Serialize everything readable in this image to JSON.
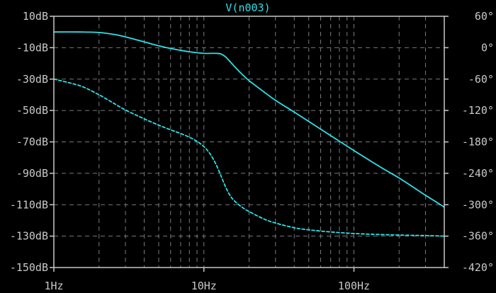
{
  "chart_data": {
    "type": "line",
    "title": "V(n003)",
    "x_scale": "log",
    "xlim": [
      1,
      400
    ],
    "x_tick_labels": [
      {
        "value": 1,
        "label": "1Hz"
      },
      {
        "value": 10,
        "label": "10Hz"
      },
      {
        "value": 100,
        "label": "100Hz"
      }
    ],
    "y_left": {
      "unit": "dB",
      "ylim": [
        -150,
        10
      ],
      "ticks": [
        {
          "value": 10,
          "label": "10dB"
        },
        {
          "value": -10,
          "label": "-10dB"
        },
        {
          "value": -30,
          "label": "-30dB"
        },
        {
          "value": -50,
          "label": "-50dB"
        },
        {
          "value": -70,
          "label": "-70dB"
        },
        {
          "value": -90,
          "label": "-90dB"
        },
        {
          "value": -110,
          "label": "-110dB"
        },
        {
          "value": -130,
          "label": "-130dB"
        },
        {
          "value": -150,
          "label": "-150dB"
        }
      ]
    },
    "y_right": {
      "unit": "°",
      "ylim": [
        -420,
        60
      ],
      "ticks": [
        {
          "value": 60,
          "label": "60°"
        },
        {
          "value": 0,
          "label": "0°"
        },
        {
          "value": -60,
          "label": "-60°"
        },
        {
          "value": -120,
          "label": "-120°"
        },
        {
          "value": -180,
          "label": "-180°"
        },
        {
          "value": -240,
          "label": "-240°"
        },
        {
          "value": -300,
          "label": "-300°"
        },
        {
          "value": -360,
          "label": "-360°"
        },
        {
          "value": -420,
          "label": "-420°"
        }
      ]
    },
    "grid": true,
    "series": [
      {
        "role": "magnitude",
        "axis": "left",
        "style": "solid",
        "color": "#2ee0e6",
        "points": [
          [
            1,
            0
          ],
          [
            1.5,
            0
          ],
          [
            2,
            -0.3
          ],
          [
            2.5,
            -1.5
          ],
          [
            3,
            -3.1
          ],
          [
            4,
            -6.3
          ],
          [
            5,
            -8.8
          ],
          [
            6,
            -10.5
          ],
          [
            8,
            -12.6
          ],
          [
            10,
            -13.6
          ],
          [
            12,
            -13.6
          ],
          [
            13,
            -14
          ],
          [
            14,
            -16
          ],
          [
            15,
            -19
          ],
          [
            16,
            -22
          ],
          [
            18,
            -27
          ],
          [
            20,
            -31
          ],
          [
            25,
            -38
          ],
          [
            30,
            -43.5
          ],
          [
            40,
            -51
          ],
          [
            50,
            -57
          ],
          [
            70,
            -66
          ],
          [
            100,
            -75.5
          ],
          [
            150,
            -86
          ],
          [
            200,
            -93
          ],
          [
            250,
            -99
          ],
          [
            300,
            -104
          ],
          [
            350,
            -108
          ],
          [
            400,
            -111.5
          ]
        ]
      },
      {
        "role": "phase",
        "axis": "right",
        "style": "dashed",
        "color": "#2ee0e6",
        "points": [
          [
            1,
            -60
          ],
          [
            1.5,
            -73
          ],
          [
            2,
            -90
          ],
          [
            2.5,
            -106
          ],
          [
            3,
            -119
          ],
          [
            4,
            -136
          ],
          [
            5,
            -148
          ],
          [
            6,
            -157
          ],
          [
            7,
            -164
          ],
          [
            8,
            -171
          ],
          [
            9,
            -179
          ],
          [
            10,
            -189
          ],
          [
            11,
            -203
          ],
          [
            12,
            -222
          ],
          [
            13,
            -245
          ],
          [
            14,
            -267
          ],
          [
            15,
            -283
          ],
          [
            16,
            -293
          ],
          [
            18,
            -305
          ],
          [
            20,
            -313
          ],
          [
            25,
            -327
          ],
          [
            30,
            -335
          ],
          [
            40,
            -344
          ],
          [
            50,
            -348
          ],
          [
            70,
            -352
          ],
          [
            100,
            -355
          ],
          [
            150,
            -357
          ],
          [
            200,
            -358
          ],
          [
            300,
            -359
          ],
          [
            400,
            -360
          ]
        ]
      }
    ]
  },
  "colors": {
    "background": "#000000",
    "frame": "#c8c8c8",
    "grid": "#7a7a7a",
    "trace": "#2ee0e6"
  }
}
